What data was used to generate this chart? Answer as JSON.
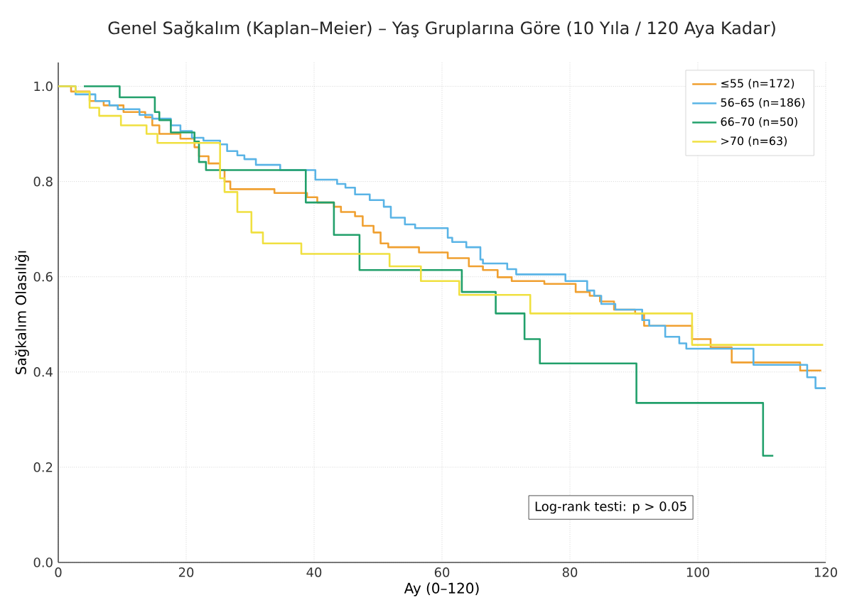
{
  "chart_data": {
    "type": "step",
    "title": "Genel Sağkalım (Kaplan–Meier) – Yaş Gruplarına Göre (10 Yıla / 120 Aya Kadar)",
    "xlabel": "Ay (0–120)",
    "ylabel": "Sağkalım Olasılığı",
    "xlim": [
      0,
      120
    ],
    "xticks": [
      0,
      20,
      40,
      60,
      80,
      100,
      120
    ],
    "ylim": [
      0,
      1.05
    ],
    "yticks": [
      {
        "value": 0,
        "label": "0.0"
      },
      {
        "value": 0.2,
        "label": "0.2"
      },
      {
        "value": 0.4,
        "label": "0.4"
      },
      {
        "value": 0.6,
        "label": "0.6"
      },
      {
        "value": 0.8,
        "label": "0.8"
      },
      {
        "value": 1.0,
        "label": "1.0"
      }
    ],
    "grid": true,
    "legend": "top right",
    "line_style": "solid",
    "annotations": [
      "Log-rank testi: p > 0.05"
    ],
    "series": [
      {
        "name": "≤55 (n=172)",
        "color": "#f0a030",
        "x": [
          0,
          2,
          4.9,
          7.1,
          10.2,
          13.6,
          14.7,
          15.8,
          19.1,
          21.3,
          22,
          23.5,
          25.3,
          26,
          26.9,
          33.8,
          38.9,
          40.5,
          43.1,
          44.2,
          46.4,
          47.6,
          49.3,
          50.4,
          51.6,
          56.4,
          60.9,
          64.2,
          66.4,
          68.7,
          70.9,
          76,
          80.9,
          83.1,
          84.7,
          86.9,
          90.2,
          91.6,
          99.1,
          102,
          105.3,
          116,
          119.3
        ],
        "values": [
          1.0,
          0.989,
          0.969,
          0.96,
          0.946,
          0.935,
          0.918,
          0.9,
          0.89,
          0.872,
          0.853,
          0.838,
          0.824,
          0.8,
          0.784,
          0.776,
          0.767,
          0.756,
          0.747,
          0.736,
          0.727,
          0.707,
          0.693,
          0.67,
          0.662,
          0.651,
          0.639,
          0.622,
          0.614,
          0.599,
          0.591,
          0.585,
          0.568,
          0.56,
          0.548,
          0.531,
          0.523,
          0.497,
          0.469,
          0.452,
          0.42,
          0.403,
          0.403
        ]
      },
      {
        "name": "56–65 (n=186)",
        "color": "#5ab4e6",
        "x": [
          0,
          2.7,
          5.8,
          8,
          9.3,
          12.7,
          14.7,
          17.6,
          19.1,
          20.9,
          22.7,
          25.3,
          26.4,
          28,
          29.1,
          30.9,
          34.7,
          40.2,
          43.6,
          44.9,
          46.4,
          48.7,
          50.9,
          52,
          54.2,
          55.8,
          60.9,
          61.6,
          63.8,
          66,
          66.4,
          70.2,
          71.6,
          79.3,
          82.7,
          83.8,
          84.9,
          87.1,
          91.3,
          92.4,
          94.9,
          97.1,
          98.2,
          108.7,
          117.1,
          118.4,
          120
        ],
        "values": [
          1.0,
          0.983,
          0.969,
          0.96,
          0.952,
          0.94,
          0.932,
          0.918,
          0.906,
          0.892,
          0.886,
          0.878,
          0.864,
          0.855,
          0.847,
          0.835,
          0.824,
          0.804,
          0.795,
          0.787,
          0.773,
          0.761,
          0.747,
          0.724,
          0.71,
          0.702,
          0.682,
          0.673,
          0.662,
          0.636,
          0.628,
          0.616,
          0.605,
          0.591,
          0.571,
          0.56,
          0.543,
          0.531,
          0.509,
          0.497,
          0.474,
          0.46,
          0.449,
          0.415,
          0.389,
          0.366,
          0.366
        ]
      },
      {
        "name": "66–70 (n=50)",
        "color": "#22a06b",
        "x": [
          4,
          9.6,
          15.1,
          15.8,
          17.6,
          21.3,
          22,
          23.1,
          38.7,
          43.1,
          47.1,
          63.1,
          68.4,
          72.9,
          75.3,
          90.4,
          110.2,
          111.8
        ],
        "values": [
          1.0,
          0.977,
          0.946,
          0.929,
          0.903,
          0.884,
          0.841,
          0.824,
          0.756,
          0.688,
          0.614,
          0.568,
          0.523,
          0.469,
          0.418,
          0.335,
          0.224,
          0.224
        ]
      },
      {
        "name": ">70 (n=63)",
        "color": "#f0e040",
        "x": [
          0,
          2.7,
          4.9,
          6.4,
          9.8,
          13.8,
          15.5,
          25.3,
          26,
          28,
          30.2,
          32,
          38,
          51.8,
          56.7,
          62.7,
          73.8,
          99.1,
          119.6
        ],
        "values": [
          1.0,
          0.988,
          0.955,
          0.938,
          0.918,
          0.9,
          0.881,
          0.807,
          0.778,
          0.736,
          0.693,
          0.67,
          0.648,
          0.622,
          0.591,
          0.562,
          0.523,
          0.457,
          0.457
        ]
      }
    ]
  }
}
